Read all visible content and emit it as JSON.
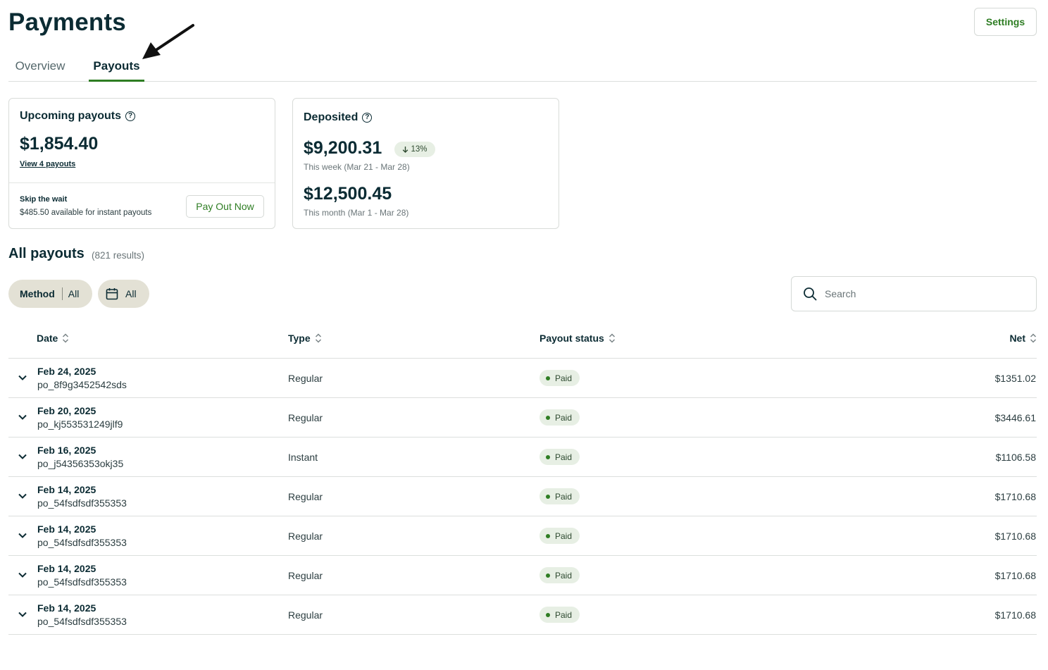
{
  "header": {
    "title": "Payments",
    "settings_label": "Settings"
  },
  "tabs": [
    {
      "label": "Overview",
      "active": false
    },
    {
      "label": "Payouts",
      "active": true
    }
  ],
  "upcoming": {
    "title": "Upcoming payouts",
    "amount": "$1,854.40",
    "link": "View 4 payouts",
    "skip_title": "Skip the wait",
    "skip_sub": "$485.50 available for instant payouts",
    "button": "Pay Out Now"
  },
  "deposited": {
    "title": "Deposited",
    "week_amount": "$9,200.31",
    "change": "13%",
    "change_direction": "down",
    "week_period": "This week (Mar 21 - Mar 28)",
    "month_amount": "$12,500.45",
    "month_period": "This month (Mar 1 - Mar 28)"
  },
  "all_payouts": {
    "title": "All payouts",
    "results": "(821 results)"
  },
  "filters": {
    "method_label": "Method",
    "method_value": "All",
    "date_value": "All",
    "date_icon": "calendar-icon"
  },
  "search": {
    "placeholder": "Search",
    "icon": "search-icon"
  },
  "table": {
    "columns": [
      "Date",
      "Type",
      "Payout status",
      "Net"
    ],
    "rows": [
      {
        "date": "Feb 24, 2025",
        "id": "po_8f9g3452542sds",
        "type": "Regular",
        "status": "Paid",
        "net": "$1351.02"
      },
      {
        "date": "Feb 20, 2025",
        "id": "po_kj553531249jlf9",
        "type": "Regular",
        "status": "Paid",
        "net": "$3446.61"
      },
      {
        "date": "Feb 16, 2025",
        "id": "po_j54356353okj35",
        "type": "Instant",
        "status": "Paid",
        "net": "$1106.58"
      },
      {
        "date": "Feb 14, 2025",
        "id": "po_54fsdfsdf355353",
        "type": "Regular",
        "status": "Paid",
        "net": "$1710.68"
      },
      {
        "date": "Feb 14, 2025",
        "id": "po_54fsdfsdf355353",
        "type": "Regular",
        "status": "Paid",
        "net": "$1710.68"
      },
      {
        "date": "Feb 14, 2025",
        "id": "po_54fsdfsdf355353",
        "type": "Regular",
        "status": "Paid",
        "net": "$1710.68"
      },
      {
        "date": "Feb 14, 2025",
        "id": "po_54fsdfsdf355353",
        "type": "Regular",
        "status": "Paid",
        "net": "$1710.68"
      }
    ]
  },
  "colors": {
    "accent": "#2e7d23",
    "title": "#0b2b33",
    "chip_bg": "#e3e1d5",
    "badge_bg": "#e7efe4"
  }
}
